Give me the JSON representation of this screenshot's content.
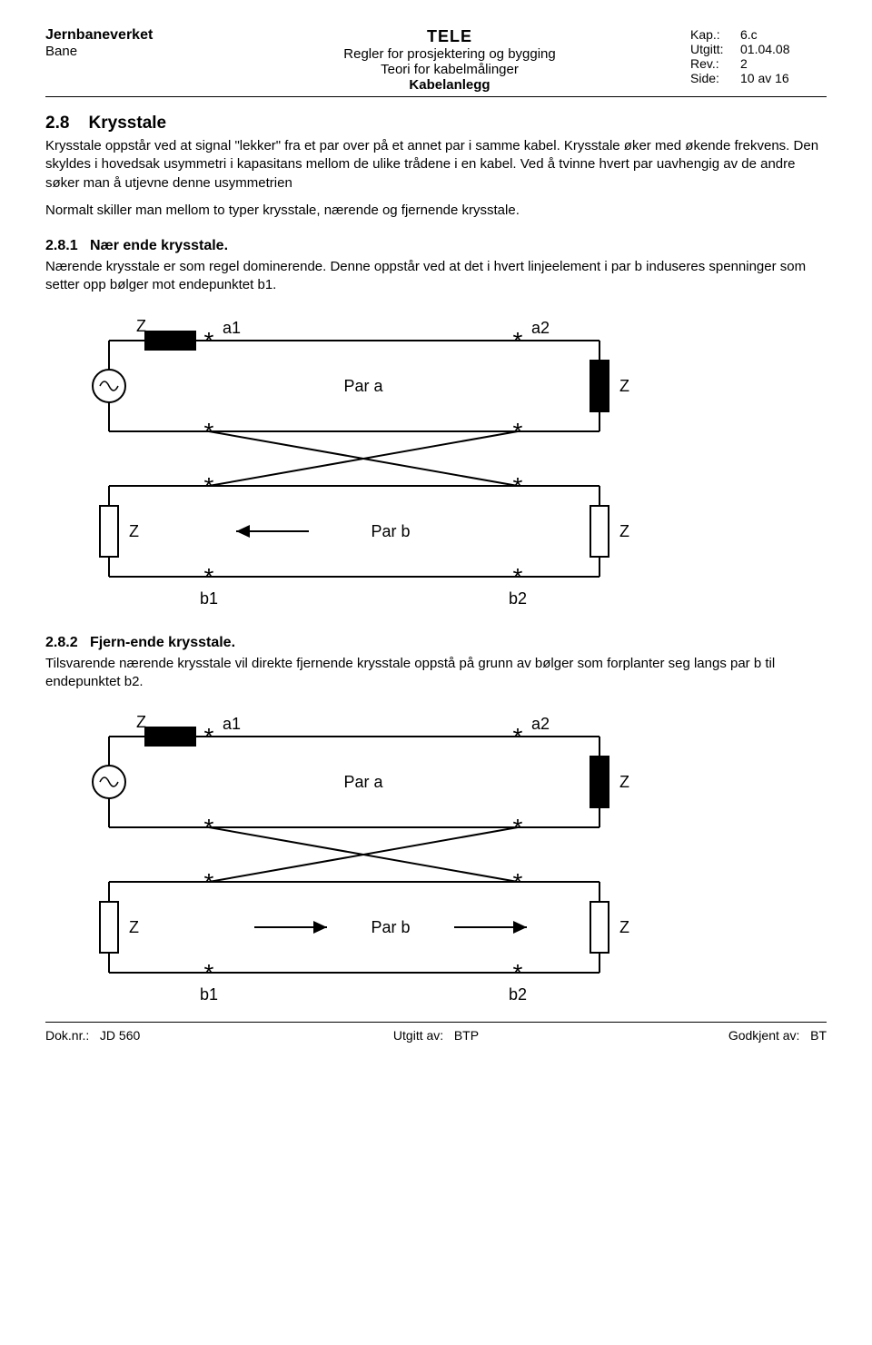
{
  "header": {
    "org": "Jernbaneverket",
    "sub": "Bane",
    "title1": "TELE",
    "title2": "Regler for prosjektering og bygging",
    "title3": "Teori for kabelmålinger",
    "title4": "Kabelanlegg",
    "meta": {
      "kap_label": "Kap.:",
      "kap": "6.c",
      "utgitt_label": "Utgitt:",
      "utgitt": "01.04.08",
      "rev_label": "Rev.:",
      "rev": "2",
      "side_label": "Side:",
      "side": "10 av 16"
    }
  },
  "section28": {
    "num": "2.8",
    "title": "Krysstale",
    "p1": "Krysstale oppstår ved at signal \"lekker\" fra et par over på et annet par i samme kabel. Krysstale øker med økende frekvens. Den skyldes i hovedsak usymmetri i kapasitans mellom de ulike trådene i en kabel. Ved å tvinne hvert par uavhengig av de andre søker man å utjevne denne usymmetrien",
    "p2": "Normalt skiller man mellom to typer krysstale, nærende  og fjernende krysstale."
  },
  "section281": {
    "num": "2.8.1",
    "title": "Nær ende krysstale.",
    "p1": "Nærende krysstale er som regel dominerende. Denne oppstår ved at det i hvert linjeelement i par b induseres spenninger som setter opp bølger mot endepunktet b1."
  },
  "section282": {
    "num": "2.8.2",
    "title": "Fjern-ende krysstale.",
    "p1": "Tilsvarende nærende krysstale vil direkte fjernende krysstale oppstå på grunn av bølger som forplanter seg langs par b til endepunktet b2."
  },
  "diagram": {
    "type": "circuit-diagram",
    "stroke": "#000000",
    "stroke_width": 2,
    "font_size_label": 18,
    "font_size_star": 28,
    "labels": {
      "Z": "Z",
      "a1": "a1",
      "a2": "a2",
      "b1": "b1",
      "b2": "b2",
      "par_a": "Par  a",
      "par_b": "Par  b",
      "star": "*"
    },
    "arrow_dir_fig1": "left",
    "arrow_dir_fig2": "right"
  },
  "footer": {
    "doknr_label": "Dok.nr.:",
    "doknr": "JD 560",
    "utgittav_label": "Utgitt av:",
    "utgittav": "BTP",
    "godkjentav_label": "Godkjent av:",
    "godkjentav": "BT"
  }
}
